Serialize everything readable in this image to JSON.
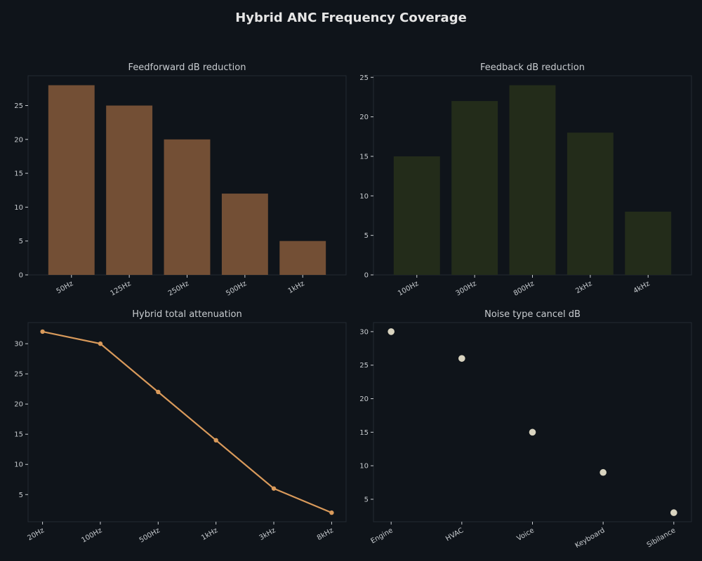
{
  "figure": {
    "title": "Hybrid ANC Frequency Coverage",
    "colors": {
      "background": "#0f141a",
      "panel": "#0f141a",
      "panel_border": "#232a33",
      "text": "#e6e6e6",
      "tick_text": "#c8ccd0",
      "bar_feedforward": "#734f35",
      "bar_feedback": "#232c1a",
      "line": "#d99a5b",
      "scatter": "#d9d4c0"
    }
  },
  "chart_data": [
    {
      "type": "bar",
      "title": "Feedforward dB reduction",
      "categories": [
        "50Hz",
        "125Hz",
        "250Hz",
        "500Hz",
        "1kHz"
      ],
      "values": [
        28,
        25,
        20,
        12,
        5
      ],
      "ylim": [
        0,
        29.4
      ],
      "yticks": [
        0,
        5,
        10,
        15,
        20,
        25
      ],
      "grid": false
    },
    {
      "type": "bar",
      "title": "Feedback dB reduction",
      "categories": [
        "100Hz",
        "300Hz",
        "800Hz",
        "2kHz",
        "4kHz"
      ],
      "values": [
        15,
        22,
        24,
        18,
        8
      ],
      "ylim": [
        0,
        25.2
      ],
      "yticks": [
        0,
        5,
        10,
        15,
        20,
        25
      ],
      "grid": false
    },
    {
      "type": "line",
      "title": "Hybrid total attenuation",
      "categories": [
        "20Hz",
        "100Hz",
        "500Hz",
        "1kHz",
        "3kHz",
        "8kHz"
      ],
      "values": [
        32,
        30,
        22,
        14,
        6,
        2
      ],
      "ylim": [
        0.5,
        33.5
      ],
      "yticks": [
        5,
        10,
        15,
        20,
        25,
        30
      ],
      "grid": false
    },
    {
      "type": "scatter",
      "title": "Noise type cancel dB",
      "categories": [
        "Engine",
        "HVAC",
        "Voice",
        "Keyboard",
        "Sibilance"
      ],
      "values": [
        30,
        26,
        15,
        9,
        3
      ],
      "ylim": [
        1.65,
        31.35
      ],
      "yticks": [
        5,
        10,
        15,
        20,
        25,
        30
      ],
      "grid": false
    }
  ]
}
